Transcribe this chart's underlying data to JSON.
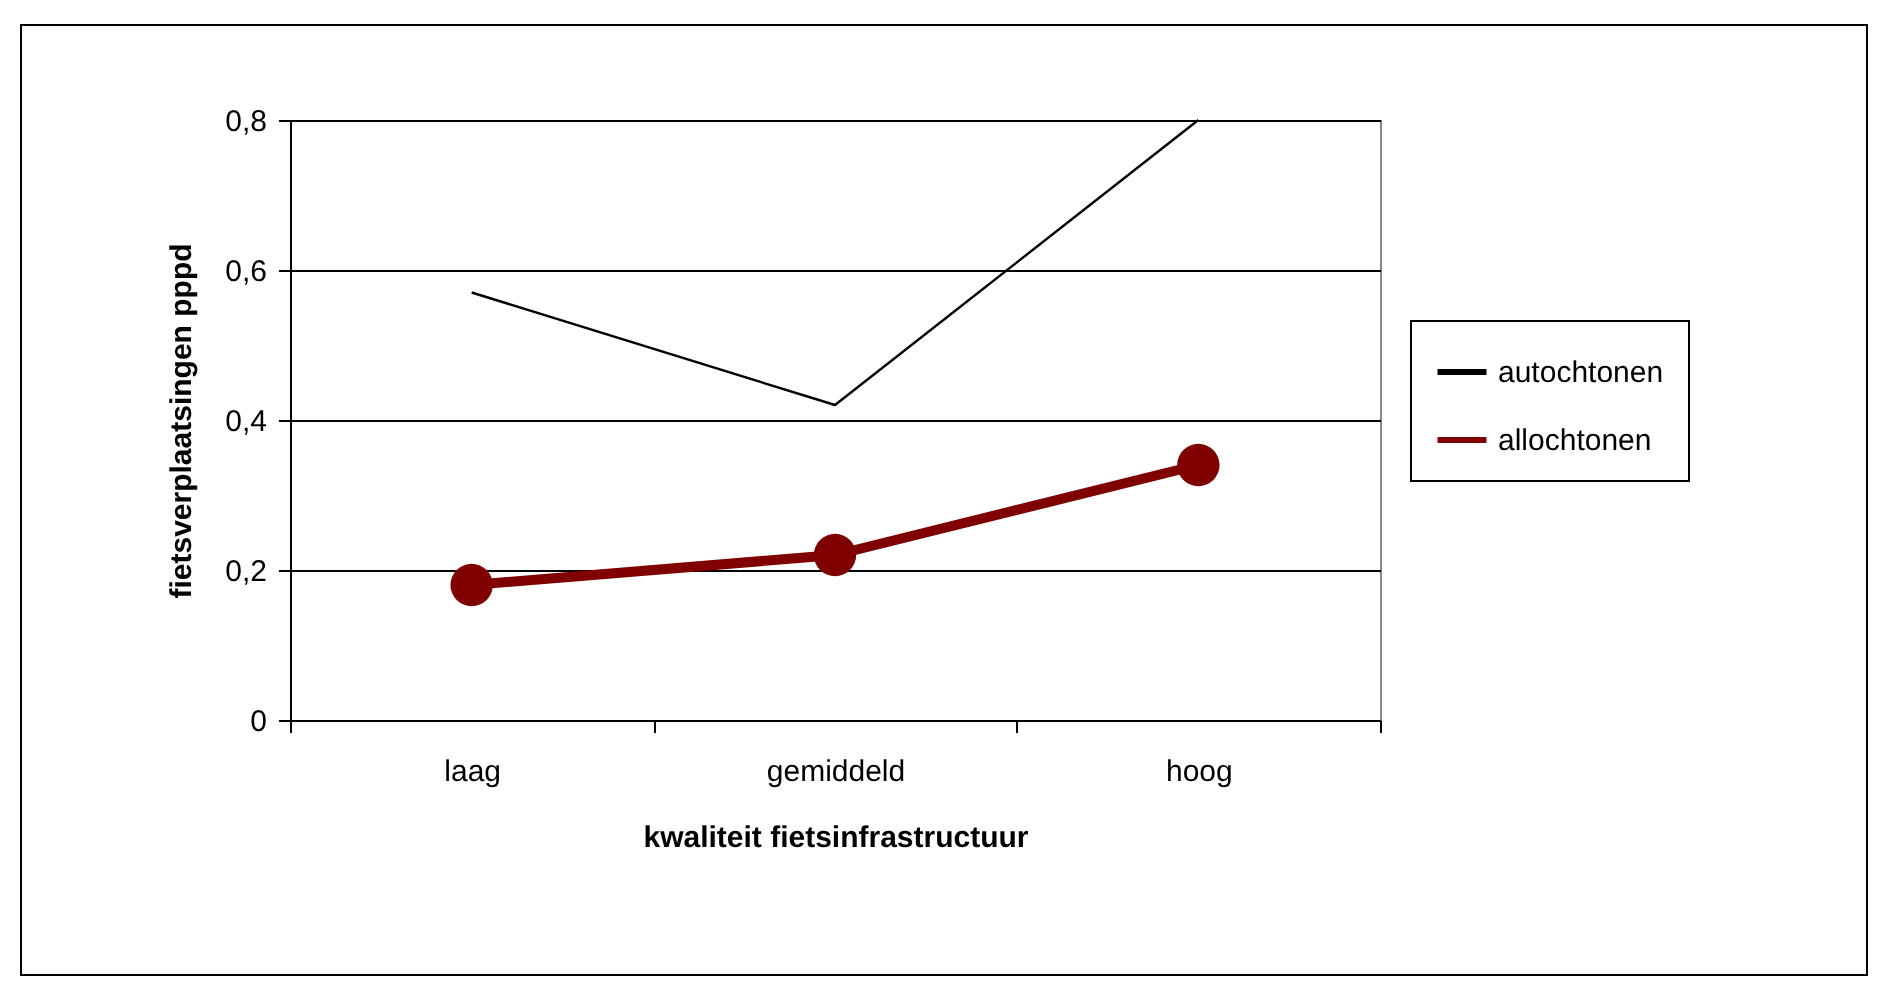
{
  "chart_data": {
    "type": "line",
    "xlabel": "kwaliteit fietsinfrastructuur",
    "ylabel": "fietsverplaatsingen pppd",
    "categories": [
      "laag",
      "gemiddeld",
      "hoog"
    ],
    "series": [
      {
        "name": "autochtonen",
        "color": "#000000",
        "values": [
          0.57,
          0.42,
          0.8
        ]
      },
      {
        "name": "allochtonen",
        "color": "#800000",
        "values": [
          0.18,
          0.22,
          0.34
        ],
        "marker": "circle"
      }
    ],
    "ylim": [
      0,
      0.8
    ],
    "yticks": [
      0,
      {
        "value": 0.2,
        "label": "0,2"
      },
      {
        "value": 0.4,
        "label": "0,4"
      },
      {
        "value": 0.6,
        "label": "0,6"
      },
      {
        "value": 0.8,
        "label": "0,8"
      }
    ],
    "grid": "y",
    "legend": "right"
  }
}
